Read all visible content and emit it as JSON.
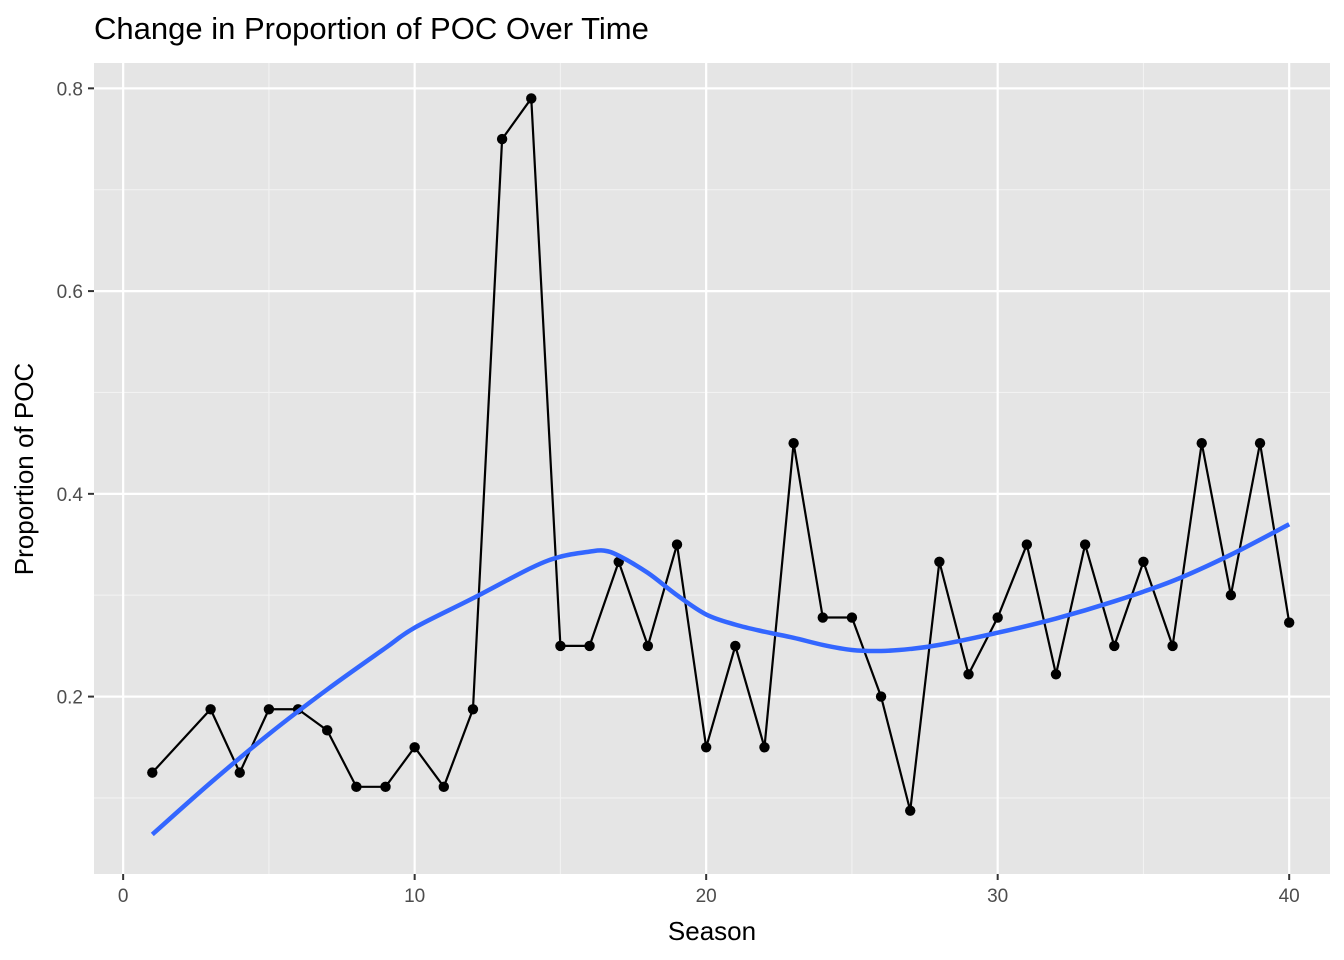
{
  "chart_data": {
    "type": "line",
    "title": "Change in Proportion of POC Over Time",
    "xlabel": "Season",
    "ylabel": "Proportion of POC",
    "xlim": [
      -1,
      41.4
    ],
    "ylim": [
      0.025,
      0.825
    ],
    "x_ticks": [
      0,
      10,
      20,
      30,
      40
    ],
    "x_tick_labels": [
      "0",
      "10",
      "20",
      "30",
      "40"
    ],
    "y_ticks": [
      0.2,
      0.4,
      0.6,
      0.8
    ],
    "y_tick_labels": [
      "0.2",
      "0.4",
      "0.6",
      "0.8"
    ],
    "grid": true,
    "series": [
      {
        "style": "line+points",
        "color": "#000000",
        "x": [
          1,
          3,
          4,
          5,
          6,
          7,
          8,
          9,
          10,
          11,
          12,
          13,
          14,
          15,
          16,
          17,
          18,
          19,
          20,
          21,
          22,
          23,
          24,
          25,
          26,
          27,
          28,
          29,
          30,
          31,
          32,
          33,
          34,
          35,
          36,
          37,
          38,
          39,
          40
        ],
        "y": [
          0.125,
          0.1875,
          0.125,
          0.1875,
          0.1875,
          0.1667,
          0.111,
          0.111,
          0.15,
          0.111,
          0.1875,
          0.75,
          0.79,
          0.25,
          0.25,
          0.333,
          0.25,
          0.35,
          0.15,
          0.25,
          0.15,
          0.45,
          0.278,
          0.278,
          0.2,
          0.0875,
          0.333,
          0.222,
          0.278,
          0.35,
          0.222,
          0.35,
          0.25,
          0.333,
          0.25,
          0.45,
          0.3,
          0.45,
          0.273
        ]
      },
      {
        "style": "smooth",
        "color": "#3366FF",
        "x": [
          1,
          3,
          5,
          7,
          9,
          10,
          12,
          14,
          15,
          16,
          16.5,
          17,
          18,
          19,
          20,
          21,
          22,
          23,
          24,
          25,
          26,
          27,
          28,
          30,
          32,
          34,
          36,
          38,
          40
        ],
        "y": [
          0.064,
          0.115,
          0.163,
          0.207,
          0.248,
          0.268,
          0.297,
          0.327,
          0.338,
          0.343,
          0.344,
          0.339,
          0.322,
          0.3,
          0.281,
          0.271,
          0.264,
          0.258,
          0.251,
          0.246,
          0.245,
          0.247,
          0.251,
          0.263,
          0.277,
          0.294,
          0.314,
          0.34,
          0.37
        ]
      }
    ]
  }
}
